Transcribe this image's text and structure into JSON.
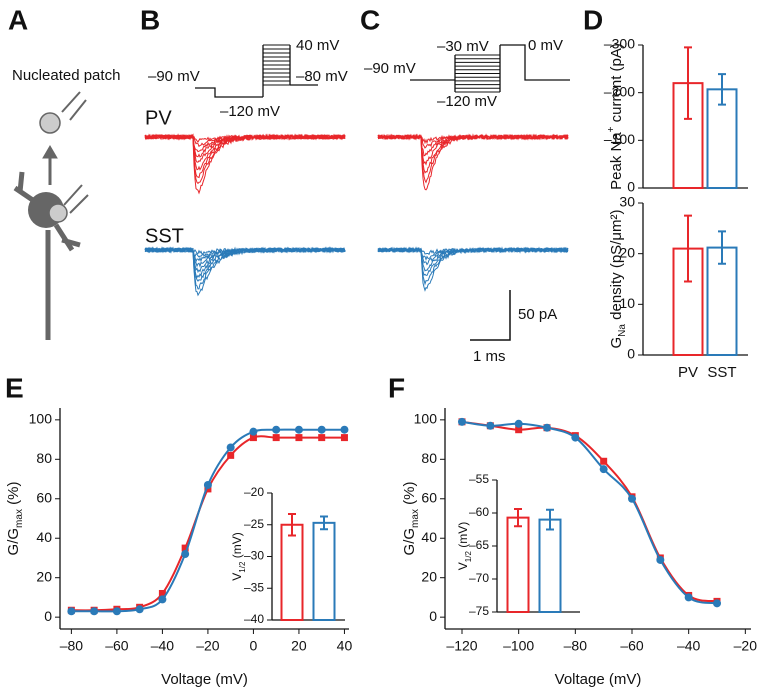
{
  "panels": {
    "a": "A",
    "b": "B",
    "c": "C",
    "d": "D",
    "e": "E",
    "f": "F"
  },
  "panel_a": {
    "label": "Nucleated patch"
  },
  "panel_b": {
    "hold": "–90 mV",
    "step_low": "–120 mV",
    "step_high": "40 mV",
    "test": "–80 mV",
    "row1": "PV",
    "row2": "SST"
  },
  "panel_c": {
    "hold": "–90 mV",
    "step_high": "–30 mV",
    "test": "0 mV",
    "step_low": "–120 mV"
  },
  "scale_bar": {
    "current": "50 pA",
    "time": "1 ms"
  },
  "chart_data": [
    {
      "type": "bar",
      "ylabel": [
        "Peak Na",
        "+",
        " current (pA)"
      ],
      "ylabel_script": "super",
      "ylim": [
        0,
        -300
      ],
      "yticks": [
        0,
        {
          "value": -100,
          "label": "–100"
        },
        {
          "value": -200,
          "label": "–200"
        },
        {
          "value": -300,
          "label": "–300"
        }
      ],
      "values": [
        -220,
        -207
      ],
      "errors": [
        75,
        32
      ],
      "colors": [
        "#e8262a",
        "#2a7ab8"
      ]
    },
    {
      "type": "bar",
      "ylabel": [
        "G",
        "Na",
        " density (pS/μm²)"
      ],
      "ylabel_script": "sub",
      "ylim": [
        0,
        30
      ],
      "yticks": [
        0,
        10,
        20,
        30
      ],
      "categories": [
        "PV",
        "SST"
      ],
      "values": [
        21,
        21.2
      ],
      "errors": [
        6.5,
        3.2
      ],
      "colors": [
        "#e8262a",
        "#2a7ab8"
      ]
    },
    {
      "type": "line",
      "xlabel": "Voltage (mV)",
      "ylabel": [
        "G/G",
        "max",
        " (%)"
      ],
      "ylabel_script": "sub",
      "xlim": [
        -85,
        42
      ],
      "ylim": [
        -6,
        106
      ],
      "xticks": [
        {
          "value": -80,
          "label": "–80"
        },
        {
          "value": -60,
          "label": "–60"
        },
        {
          "value": -40,
          "label": "–40"
        },
        {
          "value": -20,
          "label": "–20"
        },
        0,
        20,
        40
      ],
      "yticks": [
        0,
        20,
        40,
        60,
        80,
        100
      ],
      "x": [
        -80,
        -70,
        -60,
        -50,
        -40,
        -30,
        -20,
        -10,
        0,
        10,
        20,
        30,
        40
      ],
      "series": [
        {
          "color": "#e8262a",
          "marker": "square",
          "values": [
            3.5,
            3.5,
            4,
            5,
            12,
            35,
            65,
            82,
            91,
            91,
            91,
            91,
            91
          ]
        },
        {
          "color": "#2a7ab8",
          "marker": "circle",
          "values": [
            3,
            3,
            3,
            4,
            9,
            32,
            67,
            86,
            94,
            95,
            95,
            95,
            95
          ]
        }
      ]
    },
    {
      "type": "bar",
      "ylabel": [
        "V",
        "1/2",
        " (mV)"
      ],
      "ylabel_script": "sub",
      "ylim": [
        -40,
        -20
      ],
      "yticks": [
        {
          "value": -20,
          "label": "–20"
        },
        {
          "value": -25,
          "label": "–25"
        },
        {
          "value": -30,
          "label": "–30"
        },
        {
          "value": -35,
          "label": "–35"
        },
        {
          "value": -40,
          "label": "–40"
        }
      ],
      "values": [
        -25,
        -24.7
      ],
      "errors": [
        1.7,
        1
      ],
      "colors": [
        "#e8262a",
        "#2a7ab8"
      ]
    },
    {
      "type": "line",
      "xlabel": "Voltage (mV)",
      "ylabel": [
        "G/G",
        "max",
        " (%)"
      ],
      "ylabel_script": "sub",
      "xlim": [
        -126,
        -18
      ],
      "ylim": [
        -6,
        106
      ],
      "xticks": [
        {
          "value": -120,
          "label": "–120"
        },
        {
          "value": -100,
          "label": "–100"
        },
        {
          "value": -80,
          "label": "–80"
        },
        {
          "value": -60,
          "label": "–60"
        },
        {
          "value": -40,
          "label": "–40"
        },
        {
          "value": -20,
          "label": "–20"
        }
      ],
      "yticks": [
        0,
        20,
        40,
        60,
        80,
        100
      ],
      "x": [
        -120,
        -110,
        -100,
        -90,
        -80,
        -70,
        -60,
        -50,
        -40,
        -30
      ],
      "series": [
        {
          "color": "#e8262a",
          "marker": "square",
          "values": [
            99,
            97,
            95,
            96,
            92,
            79,
            61,
            30,
            11,
            8
          ]
        },
        {
          "color": "#2a7ab8",
          "marker": "circle",
          "values": [
            99,
            97,
            98,
            96,
            91,
            75,
            60,
            29,
            10,
            7
          ]
        }
      ]
    },
    {
      "type": "bar",
      "ylabel": [
        "V",
        "1/2",
        " (mV)"
      ],
      "ylabel_script": "sub",
      "ylim": [
        -75,
        -55
      ],
      "yticks": [
        {
          "value": -55,
          "label": "–55"
        },
        {
          "value": -60,
          "label": "–60"
        },
        {
          "value": -65,
          "label": "–65"
        },
        {
          "value": -70,
          "label": "–70"
        },
        {
          "value": -75,
          "label": "–75"
        }
      ],
      "values": [
        -60.7,
        -61
      ],
      "errors": [
        1.3,
        1.5
      ],
      "colors": [
        "#e8262a",
        "#2a7ab8"
      ]
    }
  ]
}
